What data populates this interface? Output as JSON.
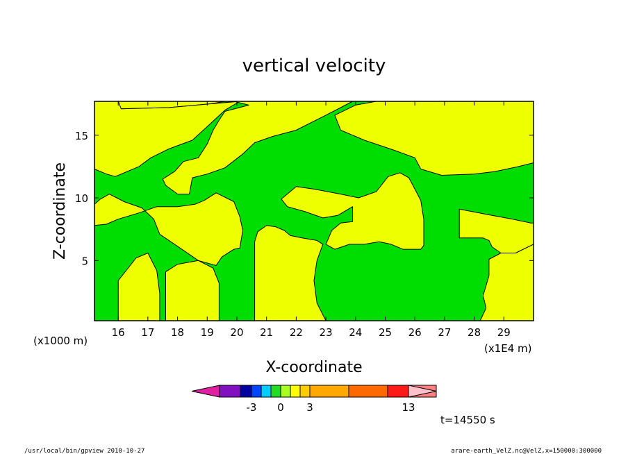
{
  "chart_data": {
    "type": "heatmap",
    "subtype": "filled-contour",
    "title": "vertical velocity",
    "xlabel": "X-coordinate",
    "ylabel": "Z-coordinate",
    "x_unit_label": "(x1E4 m)",
    "y_unit_label": "(x1000 m)",
    "xlim": [
      15.2,
      30.0
    ],
    "ylim": [
      0.2,
      17.7
    ],
    "x_ticks": [
      16,
      17,
      18,
      19,
      20,
      21,
      22,
      23,
      24,
      25,
      26,
      27,
      28,
      29
    ],
    "y_ticks": [
      5,
      10,
      15
    ],
    "colorbar": {
      "colors": [
        "#e020a0",
        "#8010c0",
        "#0000a0",
        "#0044ff",
        "#00ccff",
        "#22dd22",
        "#aaff22",
        "#ffff00",
        "#ffcc00",
        "#ffa800",
        "#ff6a00",
        "#ff1a1a",
        "#ff8080",
        "#ffc0cb"
      ],
      "tick_labels": [
        "-3",
        "0",
        "3",
        "13"
      ]
    },
    "contour_colors": {
      "positive": "#eeff00",
      "negative": "#00dd00"
    },
    "positive_regions": [
      {
        "name": "upper-left",
        "poly": [
          [
            15.2,
            17.7
          ],
          [
            16.0,
            17.7
          ],
          [
            16.1,
            17.1
          ],
          [
            17.7,
            17.2
          ],
          [
            19.1,
            17.5
          ],
          [
            19.6,
            17.7
          ],
          [
            15.2,
            17.7
          ]
        ]
      },
      {
        "name": "left-upper-band",
        "poly": [
          [
            15.2,
            17.7
          ],
          [
            15.2,
            12.3
          ],
          [
            15.6,
            11.9
          ],
          [
            15.9,
            11.7
          ],
          [
            16.2,
            12.0
          ],
          [
            16.7,
            12.5
          ],
          [
            17.1,
            13.2
          ],
          [
            17.7,
            13.9
          ],
          [
            18.5,
            14.6
          ],
          [
            19.1,
            15.9
          ],
          [
            19.6,
            17.0
          ],
          [
            20.1,
            17.7
          ],
          [
            19.1,
            17.5
          ],
          [
            17.7,
            17.2
          ],
          [
            16.1,
            17.1
          ],
          [
            16.0,
            17.7
          ]
        ]
      },
      {
        "name": "center-band",
        "poly": [
          [
            18.4,
            10.3
          ],
          [
            18.5,
            11.6
          ],
          [
            19.0,
            11.9
          ],
          [
            19.6,
            12.4
          ],
          [
            20.2,
            13.5
          ],
          [
            20.6,
            14.4
          ],
          [
            21.2,
            14.9
          ],
          [
            22.0,
            15.4
          ],
          [
            22.5,
            16.0
          ],
          [
            23.0,
            16.6
          ],
          [
            23.5,
            17.2
          ],
          [
            23.9,
            17.7
          ],
          [
            19.9,
            17.7
          ],
          [
            20.4,
            17.4
          ],
          [
            19.6,
            16.9
          ],
          [
            19.4,
            16.2
          ],
          [
            19.2,
            15.4
          ],
          [
            19.0,
            14.3
          ],
          [
            18.7,
            13.2
          ],
          [
            18.2,
            12.9
          ],
          [
            17.9,
            12.1
          ],
          [
            17.5,
            11.5
          ],
          [
            17.6,
            11.0
          ],
          [
            18.0,
            10.3
          ],
          [
            18.4,
            10.3
          ]
        ]
      },
      {
        "name": "upper-right",
        "poly": [
          [
            24.7,
            17.7
          ],
          [
            24.0,
            17.4
          ],
          [
            23.3,
            16.6
          ],
          [
            23.5,
            15.4
          ],
          [
            24.3,
            14.6
          ],
          [
            25.3,
            13.8
          ],
          [
            26.0,
            13.2
          ],
          [
            26.2,
            12.3
          ],
          [
            26.9,
            11.8
          ],
          [
            28.0,
            11.9
          ],
          [
            28.7,
            12.1
          ],
          [
            29.5,
            12.5
          ],
          [
            30.0,
            12.8
          ],
          [
            30.0,
            17.7
          ]
        ]
      },
      {
        "name": "left-middle",
        "poly": [
          [
            15.2,
            9.5
          ],
          [
            15.4,
            9.9
          ],
          [
            15.7,
            10.3
          ],
          [
            16.2,
            9.7
          ],
          [
            16.8,
            9.2
          ],
          [
            17.2,
            8.3
          ],
          [
            17.4,
            7.1
          ],
          [
            17.9,
            6.3
          ],
          [
            18.7,
            5.0
          ],
          [
            19.3,
            4.6
          ],
          [
            19.5,
            5.3
          ],
          [
            19.9,
            5.9
          ],
          [
            20.1,
            6.0
          ],
          [
            20.2,
            7.4
          ],
          [
            20.1,
            8.5
          ],
          [
            19.9,
            9.7
          ],
          [
            19.3,
            10.4
          ],
          [
            18.9,
            9.8
          ],
          [
            18.6,
            9.5
          ],
          [
            18.0,
            9.3
          ],
          [
            17.3,
            9.3
          ],
          [
            16.7,
            8.8
          ],
          [
            16.0,
            8.3
          ],
          [
            15.6,
            7.9
          ],
          [
            15.2,
            7.8
          ]
        ]
      },
      {
        "name": "left-bottom-1",
        "poly": [
          [
            16.0,
            0.2
          ],
          [
            16.0,
            3.4
          ],
          [
            16.3,
            4.3
          ],
          [
            16.6,
            5.2
          ],
          [
            17.0,
            5.6
          ],
          [
            17.3,
            4.2
          ],
          [
            17.4,
            2.4
          ],
          [
            17.4,
            0.2
          ]
        ]
      },
      {
        "name": "left-bottom-2",
        "poly": [
          [
            17.6,
            0.2
          ],
          [
            17.6,
            4.1
          ],
          [
            18.0,
            4.7
          ],
          [
            18.7,
            5.0
          ],
          [
            19.2,
            4.4
          ],
          [
            19.4,
            3.2
          ],
          [
            19.4,
            0.2
          ]
        ]
      },
      {
        "name": "center-bottom",
        "poly": [
          [
            20.6,
            0.2
          ],
          [
            20.6,
            6.5
          ],
          [
            20.7,
            7.3
          ],
          [
            21.0,
            7.8
          ],
          [
            21.3,
            7.7
          ],
          [
            21.6,
            7.4
          ],
          [
            21.8,
            7.0
          ],
          [
            22.2,
            6.8
          ],
          [
            22.7,
            6.6
          ],
          [
            22.9,
            6.3
          ],
          [
            22.7,
            5.0
          ],
          [
            22.6,
            3.4
          ],
          [
            22.7,
            1.6
          ],
          [
            23.0,
            0.2
          ]
        ]
      },
      {
        "name": "middle-right",
        "poly": [
          [
            21.5,
            9.9
          ],
          [
            22.0,
            10.9
          ],
          [
            22.6,
            10.7
          ],
          [
            23.5,
            10.3
          ],
          [
            24.1,
            10.0
          ],
          [
            24.7,
            10.5
          ],
          [
            25.1,
            11.7
          ],
          [
            25.5,
            12.0
          ],
          [
            25.8,
            11.6
          ],
          [
            26.0,
            10.7
          ],
          [
            26.2,
            9.8
          ],
          [
            26.3,
            8.3
          ],
          [
            26.3,
            6.2
          ],
          [
            26.2,
            5.9
          ],
          [
            25.6,
            5.9
          ],
          [
            25.2,
            6.3
          ],
          [
            24.8,
            6.5
          ],
          [
            24.3,
            6.3
          ],
          [
            23.8,
            6.3
          ],
          [
            23.3,
            5.9
          ],
          [
            23.0,
            6.3
          ],
          [
            23.2,
            7.4
          ],
          [
            23.5,
            8.0
          ],
          [
            23.9,
            8.1
          ],
          [
            23.9,
            9.3
          ],
          [
            23.4,
            8.6
          ],
          [
            22.9,
            8.4
          ],
          [
            22.3,
            8.9
          ],
          [
            21.7,
            9.3
          ]
        ]
      },
      {
        "name": "right-middle",
        "poly": [
          [
            27.5,
            9.1
          ],
          [
            28.6,
            8.6
          ],
          [
            29.3,
            8.3
          ],
          [
            29.9,
            8.0
          ],
          [
            30.0,
            8.0
          ],
          [
            30.0,
            6.3
          ],
          [
            29.4,
            5.6
          ],
          [
            28.9,
            5.6
          ],
          [
            28.6,
            6.1
          ],
          [
            28.5,
            6.6
          ],
          [
            28.3,
            6.8
          ],
          [
            27.5,
            6.8
          ]
        ]
      },
      {
        "name": "right-bottom",
        "poly": [
          [
            28.2,
            0.2
          ],
          [
            28.4,
            1.2
          ],
          [
            28.3,
            2.2
          ],
          [
            28.5,
            3.8
          ],
          [
            28.5,
            5.1
          ],
          [
            28.9,
            5.6
          ],
          [
            29.4,
            5.6
          ],
          [
            30.0,
            6.3
          ],
          [
            30.0,
            0.2
          ]
        ]
      }
    ],
    "footer_left": "/usr/local/bin/gpview  2010-10-27",
    "footer_right": "arare-earth_VelZ.nc@VelZ,x=150000:300000",
    "time_label": "t=14550 s"
  }
}
